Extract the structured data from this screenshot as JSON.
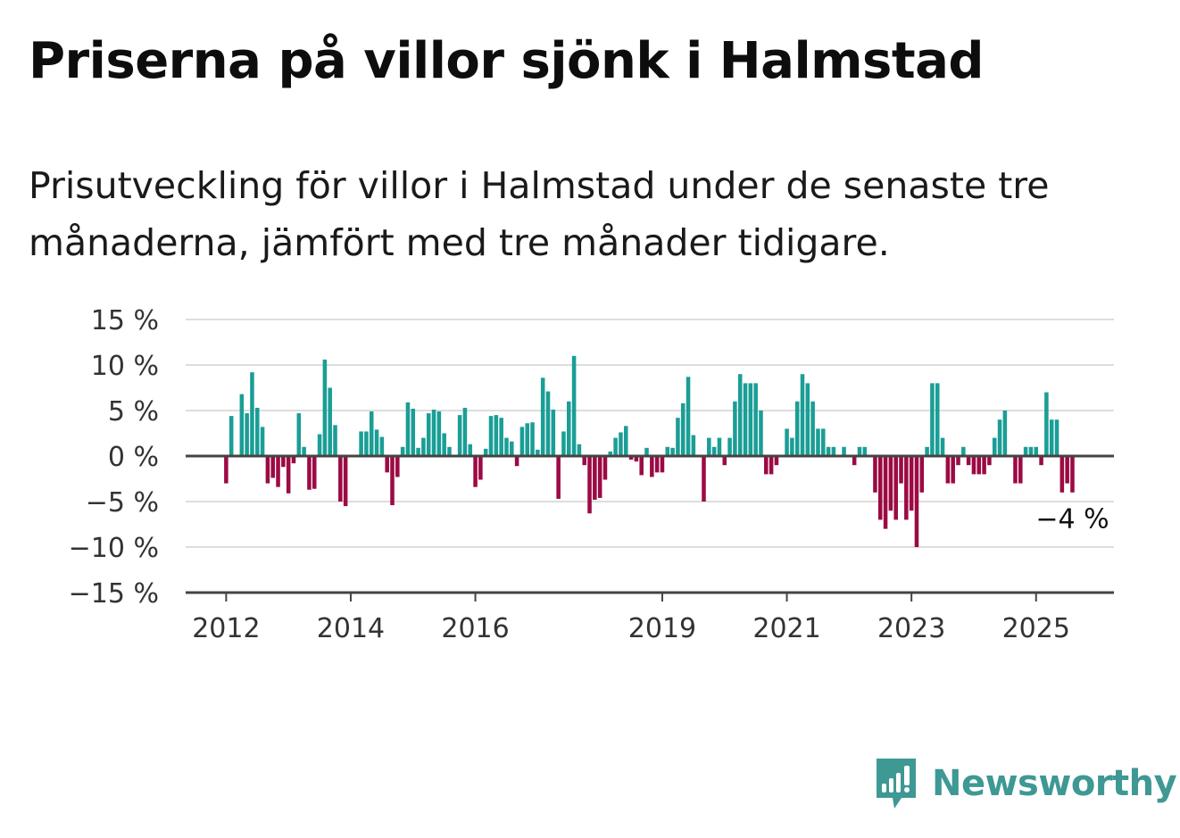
{
  "header": {
    "title": "Priserna på villor sjönk i Halmstad",
    "subtitle": "Prisutveckling för villor i Halmstad under de senaste tre månaderna, jämfört med tre månader tidigare."
  },
  "brand": {
    "name": "Newsworthy",
    "icon": "newsworthy-logo-icon"
  },
  "colors": {
    "positive": "#1a9e96",
    "negative": "#9c0a44",
    "grid": "#dddddd",
    "axis": "#444444"
  },
  "chart_data": {
    "type": "bar",
    "title": "Priserna på villor sjönk i Halmstad",
    "subtitle": "Prisutveckling för villor i Halmstad under de senaste tre månaderna, jämfört med tre månader tidigare.",
    "xlabel": "",
    "ylabel": "",
    "ylim": [
      -15,
      15
    ],
    "yticks": [
      15,
      10,
      5,
      0,
      -5,
      -10,
      -15
    ],
    "ytick_labels": [
      "15 %",
      "10 %",
      "5 %",
      "0 %",
      "−5 %",
      "−10 %",
      "−15 %"
    ],
    "x_range": [
      2011.35,
      2026.25
    ],
    "xticks": [
      2012,
      2014,
      2016,
      2019,
      2021,
      2023,
      2025
    ],
    "xtick_labels": [
      "2012",
      "2014",
      "2016",
      "2019",
      "2021",
      "2023",
      "2025"
    ],
    "grid": true,
    "start": 2012.0,
    "step": 0.0833333,
    "end_label": "−4 %",
    "values": [
      -3.0,
      4.4,
      0,
      6.8,
      4.7,
      9.2,
      5.3,
      3.2,
      -3.0,
      -2.4,
      -3.4,
      -1.2,
      -4.1,
      -0.8,
      4.7,
      1.0,
      -3.7,
      -3.6,
      2.4,
      10.6,
      7.5,
      3.4,
      -5.0,
      -5.5,
      0,
      0,
      2.7,
      2.7,
      4.9,
      2.9,
      2.1,
      -1.8,
      -5.4,
      -2.3,
      1.0,
      5.9,
      5.2,
      0.9,
      2.0,
      4.7,
      5.1,
      4.9,
      2.5,
      1.0,
      0,
      4.5,
      5.3,
      1.3,
      -3.4,
      -2.6,
      0.8,
      4.4,
      4.5,
      4.2,
      2.0,
      1.6,
      -1.1,
      3.2,
      3.6,
      3.7,
      0.7,
      8.6,
      7.1,
      5.1,
      -4.7,
      2.7,
      6.0,
      11.0,
      1.3,
      -1.0,
      -6.3,
      -4.8,
      -4.6,
      -2.6,
      0.5,
      2.0,
      2.6,
      3.3,
      -0.4,
      -0.6,
      -2.1,
      0.9,
      -2.3,
      -1.8,
      -1.8,
      1.0,
      0.9,
      4.2,
      5.8,
      8.7,
      2.3,
      0,
      -5.0,
      2.0,
      1.0,
      2.0,
      -1.0,
      2.0,
      6.0,
      9.0,
      8.0,
      8.0,
      8.0,
      5.0,
      -2.0,
      -2.0,
      -1.0,
      0,
      3.0,
      2.0,
      6.0,
      9.0,
      8.0,
      6.0,
      3.0,
      3.0,
      1.0,
      1.0,
      0,
      1.0,
      0,
      -1.0,
      1.0,
      1.0,
      0,
      -4.0,
      -7.0,
      -8.0,
      -6.0,
      -7.0,
      -3.0,
      -7.0,
      -6.0,
      -10.0,
      -4.0,
      1.0,
      8.0,
      8.0,
      2.0,
      -3.0,
      -3.0,
      -1.0,
      1.0,
      -1.0,
      -2.0,
      -2.0,
      -2.0,
      -1.0,
      2.0,
      4.0,
      5.0,
      0,
      -3.0,
      -3.0,
      1.0,
      1.0,
      1.0,
      -1.0,
      7.0,
      4.0,
      4.0,
      -4.0,
      -3.0,
      -4.0
    ]
  }
}
